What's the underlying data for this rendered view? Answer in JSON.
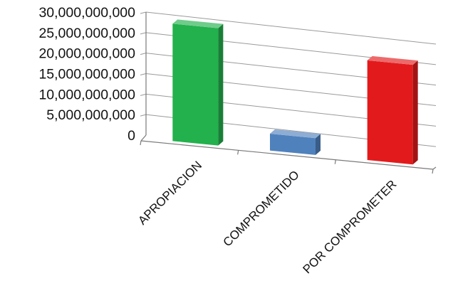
{
  "chart_data": {
    "type": "bar",
    "style": "3d-column",
    "categories": [
      "APROPIACION",
      "COMPROMETIDO",
      "POR COMPROMETER"
    ],
    "values": [
      28600000000,
      4100000000,
      24300000000
    ],
    "colors": [
      "#22b14c",
      "#4f81bd",
      "#e31a1c"
    ],
    "ylim": [
      0,
      30000000000
    ],
    "yticks": [
      "0",
      "5,000,000,000",
      "10,000,000,000",
      "15,000,000,000",
      "20,000,000,000",
      "25,000,000,000",
      "30,000,000,000"
    ],
    "grid": true,
    "legend": "none"
  }
}
